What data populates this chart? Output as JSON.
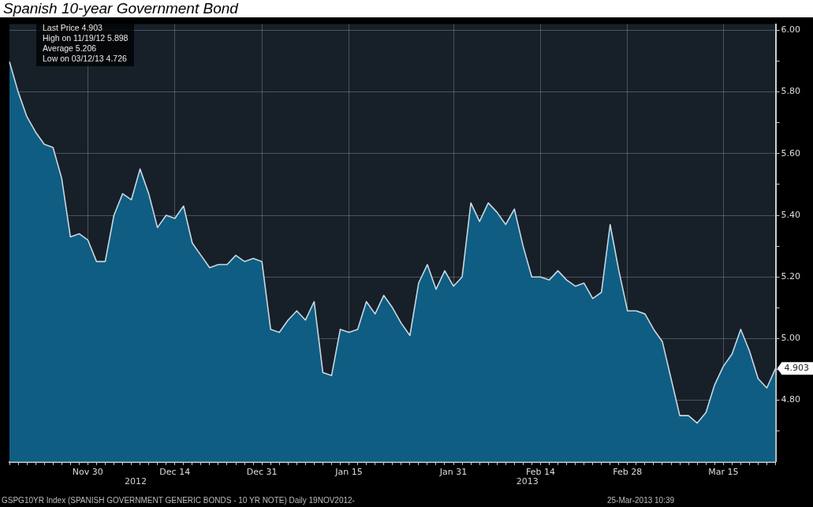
{
  "chart_data": {
    "type": "area",
    "title": "Spanish 10-year Government Bond",
    "categories": [
      null,
      null,
      null,
      null,
      null,
      null,
      null,
      null,
      null,
      "Nov 30",
      null,
      null,
      null,
      null,
      null,
      null,
      null,
      null,
      null,
      "Dec 14",
      null,
      null,
      null,
      null,
      null,
      null,
      null,
      null,
      null,
      "Dec 31",
      null,
      null,
      null,
      null,
      null,
      null,
      null,
      null,
      null,
      "Jan 15",
      null,
      null,
      null,
      null,
      null,
      null,
      null,
      null,
      null,
      null,
      null,
      "Jan 31",
      null,
      null,
      null,
      null,
      null,
      null,
      null,
      null,
      null,
      "Feb 14",
      null,
      null,
      null,
      null,
      null,
      null,
      null,
      null,
      null,
      "Feb 28",
      null,
      null,
      null,
      null,
      null,
      null,
      null,
      null,
      null,
      null,
      "Mar 15",
      null,
      null,
      null,
      null,
      null,
      null
    ],
    "series": [
      {
        "color": "#0f5d82",
        "values": [
          5.898,
          5.8,
          5.72,
          5.67,
          5.63,
          5.62,
          5.52,
          5.33,
          5.34,
          5.32,
          5.25,
          5.25,
          5.4,
          5.47,
          5.45,
          5.55,
          5.47,
          5.36,
          5.4,
          5.39,
          5.43,
          5.31,
          5.27,
          5.23,
          5.24,
          5.24,
          5.27,
          5.25,
          5.26,
          5.25,
          5.03,
          5.02,
          5.06,
          5.09,
          5.06,
          5.12,
          4.89,
          4.88,
          5.03,
          5.02,
          5.03,
          5.12,
          5.08,
          5.14,
          5.1,
          5.05,
          5.01,
          5.18,
          5.24,
          5.16,
          5.22,
          5.17,
          5.2,
          5.44,
          5.38,
          5.44,
          5.41,
          5.37,
          5.42,
          5.3,
          5.2,
          5.2,
          5.19,
          5.22,
          5.19,
          5.17,
          5.18,
          5.13,
          5.15,
          5.37,
          5.22,
          5.09,
          5.09,
          5.08,
          5.03,
          4.99,
          4.87,
          4.75,
          4.75,
          4.726,
          4.76,
          4.85,
          4.91,
          4.95,
          5.03,
          4.96,
          4.87,
          4.84,
          4.903
        ],
        "value_labels": [
          null,
          null,
          null,
          null,
          null,
          null,
          null,
          null,
          null,
          null,
          null,
          null,
          null,
          null,
          null,
          null,
          null,
          null,
          null,
          null,
          null,
          null,
          null,
          null,
          null,
          null,
          null,
          null,
          null,
          null,
          null,
          null,
          null,
          null,
          null,
          null,
          null,
          null,
          null,
          null,
          null,
          null,
          null,
          null,
          null,
          null,
          null,
          null,
          null,
          null,
          null,
          null,
          null,
          null,
          null,
          null,
          null,
          null,
          null,
          null,
          null,
          null,
          null,
          null,
          null,
          null,
          null,
          null,
          null,
          null,
          null,
          null,
          null,
          null,
          null,
          null,
          null,
          null,
          null,
          null,
          null,
          null,
          null,
          null,
          null,
          null,
          null,
          null,
          "4.903"
        ]
      }
    ],
    "ylim": [
      4.6,
      6.02
    ],
    "yticks": [
      {
        "value": 4.7,
        "label": null
      },
      {
        "value": 4.8,
        "label": "4.80"
      },
      {
        "value": 4.9,
        "label": null
      },
      {
        "value": 5.0,
        "label": "5.00"
      },
      {
        "value": 5.1,
        "label": null
      },
      {
        "value": 5.2,
        "label": "5.20"
      },
      {
        "value": 5.3,
        "label": null
      },
      {
        "value": 5.4,
        "label": "5.40"
      },
      {
        "value": 5.5,
        "label": null
      },
      {
        "value": 5.6,
        "label": "5.60"
      },
      {
        "value": 5.7,
        "label": null
      },
      {
        "value": 5.8,
        "label": "5.80"
      },
      {
        "value": 5.9,
        "label": null
      },
      {
        "value": 6.0,
        "label": "6.00"
      }
    ],
    "grid": true,
    "annotations": [
      "Last Price 4.903",
      "High on 11/19/12 5.898",
      "Average 5.206",
      "Low on 03/12/13 4.726",
      "2012",
      "2013",
      "GSPG10YR Index (SPANISH GOVERNMENT GENERIC BONDS - 10 YR NOTE)  Daily 19NOV2012-",
      "25-Mar-2013 10:39"
    ]
  }
}
